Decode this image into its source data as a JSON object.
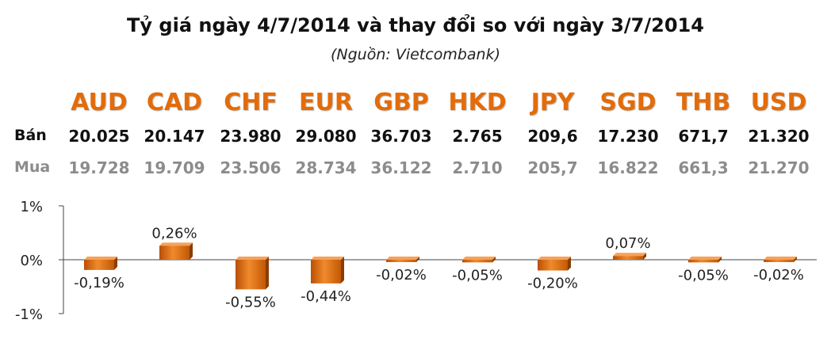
{
  "header": {
    "title": "Tỷ giá ngày 4/7/2014 và thay đổi so với ngày 3/7/2014",
    "subtitle": "(Nguồn: Vietcombank)"
  },
  "table": {
    "sell_label": "Bán",
    "buy_label": "Mua",
    "currencies": [
      "AUD",
      "CAD",
      "CHF",
      "EUR",
      "GBP",
      "HKD",
      "JPY",
      "SGD",
      "THB",
      "USD"
    ],
    "sell": [
      "20.025",
      "20.147",
      "23.980",
      "29.080",
      "36.703",
      "2.765",
      "209,6",
      "17.230",
      "671,7",
      "21.320"
    ],
    "buy": [
      "19.728",
      "19.709",
      "23.506",
      "28.734",
      "36.122",
      "2.710",
      "205,7",
      "16.822",
      "661,3",
      "21.270"
    ]
  },
  "colors": {
    "currency_text": "#e36c0a",
    "bar": "#e36c0a",
    "sell_text": "#111111",
    "buy_text": "#8c8c8c"
  },
  "chart_data": {
    "type": "bar",
    "categories": [
      "AUD",
      "CAD",
      "CHF",
      "EUR",
      "GBP",
      "HKD",
      "JPY",
      "SGD",
      "THB",
      "USD"
    ],
    "values": [
      -0.19,
      0.26,
      -0.55,
      -0.44,
      -0.02,
      -0.05,
      -0.2,
      0.07,
      -0.05,
      -0.02
    ],
    "data_labels": [
      "-0,19%",
      "0,26%",
      "-0,55%",
      "-0,44%",
      "-0,02%",
      "-0,05%",
      "-0,20%",
      "0,07%",
      "-0,05%",
      "-0,02%"
    ],
    "ylim": [
      -1,
      1
    ],
    "y_ticks": [
      1,
      0,
      -1
    ],
    "y_tick_labels": [
      "1%",
      "0%",
      "-1%"
    ],
    "grid": false
  }
}
